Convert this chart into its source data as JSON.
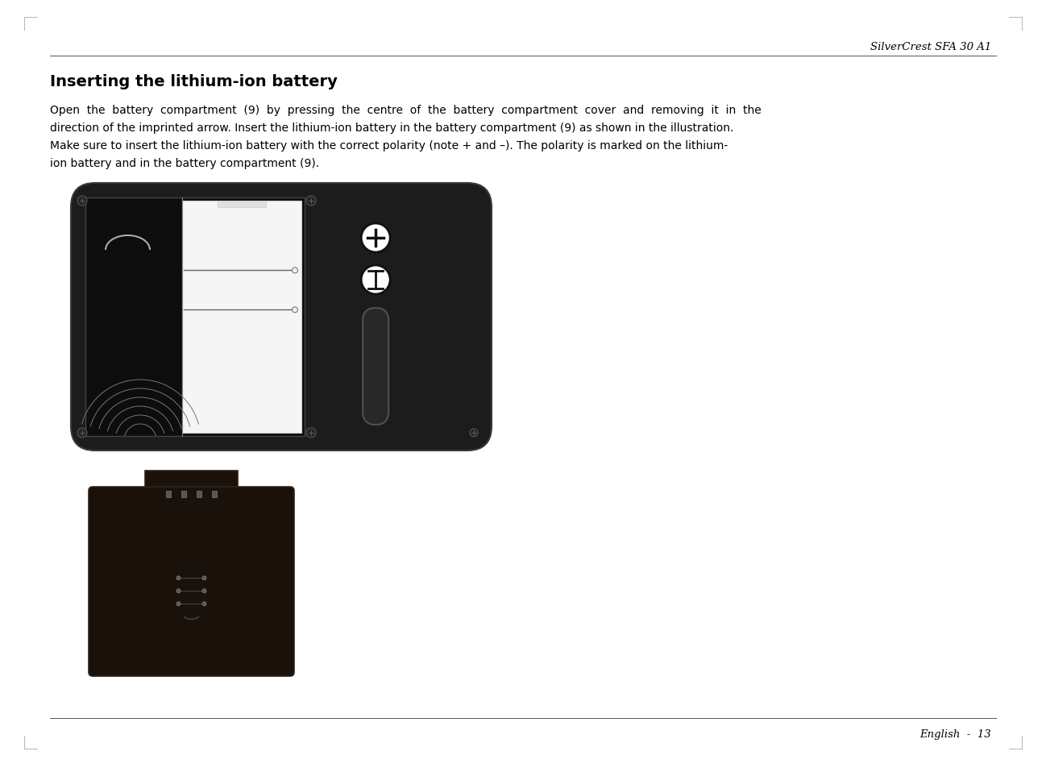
{
  "title": "Inserting the lithium-ion battery",
  "header_text": "SilverCrest SFA 30 A1",
  "footer_text": "English  -  13",
  "body_text_line1": "Open  the  battery  compartment  (9)  by  pressing  the  centre  of  the  battery  compartment  cover  and  removing  it  in  the",
  "body_text_line2": "direction of the imprinted arrow. Insert the lithium-ion battery in the battery compartment (9) as shown in the illustration.",
  "body_text_line3": "Make sure to insert the lithium-ion battery with the correct polarity (note + and –). The polarity is marked on the lithium-",
  "body_text_line4": "ion battery and in the battery compartment (9).",
  "background_color": "#ffffff",
  "text_color": "#000000",
  "title_fontsize": 14,
  "body_fontsize": 10,
  "header_fontsize": 9.5,
  "footer_fontsize": 9.5,
  "device_color": "#1c1c1c",
  "battery_color": "#1a100a"
}
